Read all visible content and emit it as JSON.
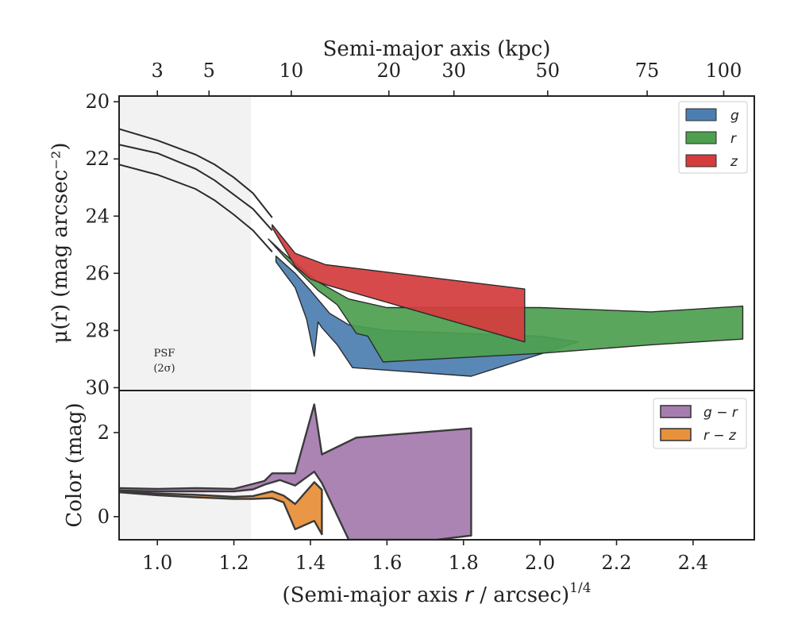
{
  "chart_data": [
    {
      "id": "surface-brightness",
      "type": "area",
      "top_axis": {
        "label": "Semi-major axis (kpc)",
        "ticks": [
          {
            "x": 1.0,
            "label": "3"
          },
          {
            "x": 1.135,
            "label": "5"
          },
          {
            "x": 1.35,
            "label": "10"
          },
          {
            "x": 1.605,
            "label": "20"
          },
          {
            "x": 1.775,
            "label": "30"
          },
          {
            "x": 2.02,
            "label": "50"
          },
          {
            "x": 2.28,
            "label": "75"
          },
          {
            "x": 2.48,
            "label": "100"
          }
        ]
      },
      "ylabel": "μ(r) (mag arcsec⁻²)",
      "xlim": [
        0.9,
        2.56
      ],
      "ylim": [
        30.1,
        19.8
      ],
      "yticks": [
        20,
        22,
        24,
        26,
        28,
        30
      ],
      "psf_label": [
        "PSF",
        "(2σ)"
      ],
      "psf_limit": 1.245,
      "legend": [
        {
          "name": "g",
          "color": "#4c7fb1"
        },
        {
          "name": "r",
          "color": "#4e9f50"
        },
        {
          "name": "z",
          "color": "#d43c3d"
        }
      ],
      "series": [
        {
          "name": "g",
          "color": "#4c7fb1",
          "upper": [
            [
              1.31,
              25.4
            ],
            [
              1.36,
              26.0
            ],
            [
              1.4,
              26.6
            ],
            [
              1.45,
              27.4
            ],
            [
              1.5,
              27.8
            ],
            [
              1.6,
              28.0
            ],
            [
              1.8,
              28.1
            ],
            [
              2.0,
              28.2
            ],
            [
              2.1,
              28.4
            ]
          ],
          "lower": [
            [
              1.31,
              25.6
            ],
            [
              1.36,
              26.5
            ],
            [
              1.39,
              27.6
            ],
            [
              1.41,
              28.9
            ],
            [
              1.42,
              27.7
            ],
            [
              1.43,
              27.9
            ],
            [
              1.47,
              28.5
            ],
            [
              1.51,
              29.3
            ],
            [
              1.82,
              29.6
            ],
            [
              2.1,
              28.4
            ]
          ]
        },
        {
          "name": "r",
          "color": "#4e9f50",
          "upper": [
            [
              1.29,
              24.8
            ],
            [
              1.33,
              25.3
            ],
            [
              1.42,
              26.3
            ],
            [
              1.5,
              26.9
            ],
            [
              1.6,
              27.2
            ],
            [
              2.0,
              27.2
            ],
            [
              2.29,
              27.35
            ],
            [
              2.53,
              27.15
            ]
          ],
          "lower": [
            [
              1.29,
              24.8
            ],
            [
              1.33,
              25.4
            ],
            [
              1.42,
              26.6
            ],
            [
              1.47,
              27.1
            ],
            [
              1.52,
              28.1
            ],
            [
              1.55,
              28.2
            ],
            [
              1.59,
              29.1
            ],
            [
              2.0,
              28.8
            ],
            [
              2.29,
              28.5
            ],
            [
              2.53,
              28.3
            ]
          ]
        },
        {
          "name": "z",
          "color": "#d43c3d",
          "upper": [
            [
              1.3,
              24.3
            ],
            [
              1.36,
              25.3
            ],
            [
              1.41,
              25.55
            ],
            [
              1.44,
              25.7
            ],
            [
              1.96,
              26.55
            ]
          ],
          "lower": [
            [
              1.3,
              24.4
            ],
            [
              1.36,
              25.75
            ],
            [
              1.4,
              26.2
            ],
            [
              1.44,
              26.4
            ],
            [
              1.96,
              28.4
            ]
          ]
        }
      ],
      "profile_lines": [
        [
          [
            0.9,
            20.95
          ],
          [
            1.0,
            21.35
          ],
          [
            1.1,
            21.85
          ],
          [
            1.15,
            22.2
          ],
          [
            1.2,
            22.65
          ],
          [
            1.25,
            23.2
          ],
          [
            1.3,
            24.05
          ]
        ],
        [
          [
            0.9,
            21.5
          ],
          [
            1.0,
            21.8
          ],
          [
            1.1,
            22.35
          ],
          [
            1.15,
            22.75
          ],
          [
            1.2,
            23.25
          ],
          [
            1.25,
            23.75
          ],
          [
            1.3,
            24.5
          ]
        ],
        [
          [
            0.9,
            22.2
          ],
          [
            1.0,
            22.55
          ],
          [
            1.1,
            23.05
          ],
          [
            1.15,
            23.45
          ],
          [
            1.2,
            23.95
          ],
          [
            1.25,
            24.5
          ],
          [
            1.3,
            25.25
          ]
        ]
      ]
    },
    {
      "id": "color-profile",
      "type": "area",
      "xlabel": "(Semi-major axis r / arcsec)^1/4",
      "ylabel": "Color (mag)",
      "xlim": [
        0.9,
        2.56
      ],
      "ylim": [
        -0.55,
        3.0
      ],
      "xticks": [
        {
          "x": 1.0,
          "label": "1.0"
        },
        {
          "x": 1.2,
          "label": "1.2"
        },
        {
          "x": 1.4,
          "label": "1.4"
        },
        {
          "x": 1.6,
          "label": "1.6"
        },
        {
          "x": 1.8,
          "label": "1.8"
        },
        {
          "x": 2.0,
          "label": "2.0"
        },
        {
          "x": 2.2,
          "label": "2.2"
        },
        {
          "x": 2.4,
          "label": "2.4"
        }
      ],
      "yticks": [
        0,
        2
      ],
      "legend": [
        {
          "name": "g − r",
          "color": "#a77db0"
        },
        {
          "name": "r − z",
          "color": "#e8913c"
        }
      ],
      "series": [
        {
          "name": "g − r",
          "color": "#a77db0",
          "upper": [
            [
              0.9,
              0.68
            ],
            [
              1.0,
              0.66
            ],
            [
              1.1,
              0.68
            ],
            [
              1.2,
              0.66
            ],
            [
              1.25,
              0.78
            ],
            [
              1.28,
              0.85
            ],
            [
              1.3,
              1.03
            ],
            [
              1.36,
              1.03
            ],
            [
              1.41,
              2.67
            ],
            [
              1.43,
              1.48
            ],
            [
              1.52,
              1.88
            ],
            [
              1.82,
              2.1
            ]
          ],
          "lower": [
            [
              0.9,
              0.62
            ],
            [
              1.0,
              0.6
            ],
            [
              1.1,
              0.6
            ],
            [
              1.2,
              0.6
            ],
            [
              1.25,
              0.65
            ],
            [
              1.28,
              0.76
            ],
            [
              1.32,
              0.87
            ],
            [
              1.36,
              0.74
            ],
            [
              1.41,
              1.07
            ],
            [
              1.43,
              0.8
            ],
            [
              1.5,
              -0.55
            ],
            [
              1.73,
              -0.55
            ],
            [
              1.82,
              -0.45
            ]
          ]
        },
        {
          "name": "r − z",
          "color": "#e8913c",
          "upper": [
            [
              0.9,
              0.6
            ],
            [
              1.0,
              0.55
            ],
            [
              1.1,
              0.52
            ],
            [
              1.2,
              0.47
            ],
            [
              1.25,
              0.49
            ],
            [
              1.3,
              0.6
            ],
            [
              1.33,
              0.5
            ],
            [
              1.36,
              0.3
            ],
            [
              1.41,
              0.82
            ],
            [
              1.43,
              0.64
            ]
          ],
          "lower": [
            [
              0.9,
              0.58
            ],
            [
              1.0,
              0.51
            ],
            [
              1.1,
              0.46
            ],
            [
              1.2,
              0.42
            ],
            [
              1.25,
              0.42
            ],
            [
              1.3,
              0.44
            ],
            [
              1.33,
              0.34
            ],
            [
              1.36,
              -0.3
            ],
            [
              1.41,
              -0.1
            ],
            [
              1.43,
              -0.42
            ]
          ]
        }
      ]
    }
  ]
}
